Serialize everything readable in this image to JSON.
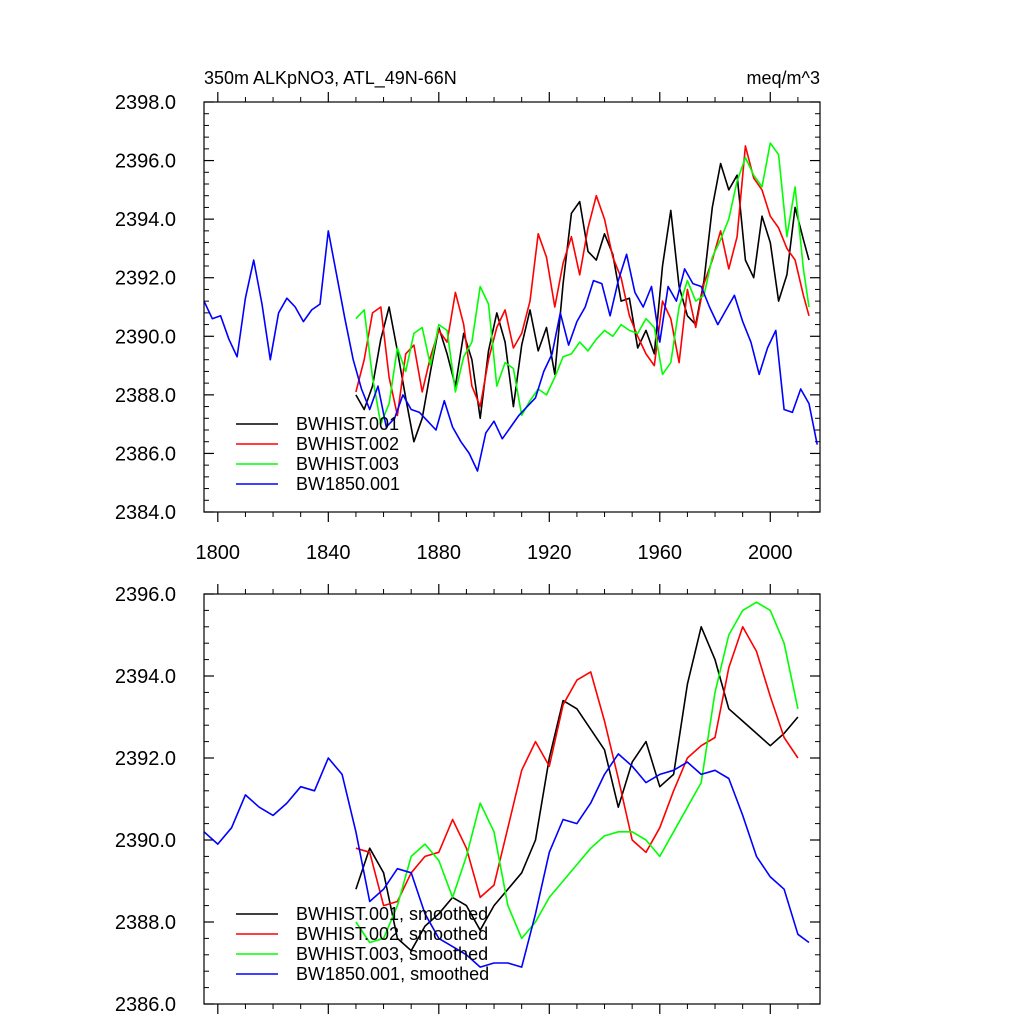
{
  "chart_data": [
    {
      "type": "line",
      "title": "350m ALKpNO3, ATL_49N-66N",
      "units": "meq/m^3",
      "xlim": [
        1795,
        2018
      ],
      "ylim": [
        2384.0,
        2398.0
      ],
      "x_ticks": [
        1800,
        1840,
        1880,
        1920,
        1960,
        2000
      ],
      "x_tick_labels": [
        "1800",
        "1840",
        "1880",
        "1920",
        "1960",
        "2000"
      ],
      "y_ticks": [
        2384.0,
        2386.0,
        2388.0,
        2390.0,
        2392.0,
        2394.0,
        2396.0,
        2398.0
      ],
      "y_tick_labels": [
        "2384.0",
        "2386.0",
        "2388.0",
        "2390.0",
        "2392.0",
        "2394.0",
        "2396.0",
        "2398.0"
      ],
      "legend_position": "bottom-left",
      "series": [
        {
          "name": "BWHIST.001",
          "color": "#000000",
          "x": [
            1850,
            1853,
            1856,
            1859,
            1862,
            1865,
            1868,
            1871,
            1874,
            1877,
            1880,
            1883,
            1886,
            1889,
            1892,
            1895,
            1898,
            1901,
            1904,
            1907,
            1910,
            1913,
            1916,
            1919,
            1922,
            1925,
            1928,
            1931,
            1934,
            1937,
            1940,
            1943,
            1946,
            1949,
            1952,
            1955,
            1958,
            1961,
            1964,
            1967,
            1970,
            1973,
            1976,
            1979,
            1982,
            1985,
            1988,
            1991,
            1994,
            1997,
            2000,
            2003,
            2006,
            2009,
            2012,
            2014
          ],
          "y": [
            2388.0,
            2387.5,
            2388.3,
            2389.9,
            2391.0,
            2389.5,
            2387.9,
            2386.4,
            2387.2,
            2388.8,
            2390.3,
            2389.4,
            2388.3,
            2390.1,
            2389.2,
            2387.2,
            2389.5,
            2390.8,
            2389.8,
            2387.6,
            2389.7,
            2390.9,
            2389.5,
            2390.3,
            2388.7,
            2391.8,
            2394.2,
            2394.6,
            2392.9,
            2392.6,
            2393.5,
            2392.8,
            2391.2,
            2391.3,
            2389.6,
            2390.2,
            2389.4,
            2392.4,
            2394.3,
            2391.7,
            2390.7,
            2390.4,
            2391.9,
            2394.4,
            2395.9,
            2395.0,
            2395.5,
            2392.6,
            2392.0,
            2394.1,
            2393.2,
            2391.2,
            2392.1,
            2394.4,
            2393.3,
            2392.6
          ]
        },
        {
          "name": "BWHIST.002",
          "color": "#ff0000",
          "x": [
            1850,
            1853,
            1856,
            1859,
            1862,
            1865,
            1868,
            1871,
            1874,
            1877,
            1880,
            1883,
            1886,
            1889,
            1892,
            1895,
            1898,
            1901,
            1904,
            1907,
            1910,
            1913,
            1916,
            1919,
            1922,
            1925,
            1928,
            1931,
            1934,
            1937,
            1940,
            1943,
            1946,
            1949,
            1952,
            1955,
            1958,
            1961,
            1964,
            1967,
            1970,
            1973,
            1976,
            1979,
            1982,
            1985,
            1988,
            1991,
            1994,
            1997,
            2000,
            2003,
            2006,
            2009,
            2012,
            2014
          ],
          "y": [
            2388.1,
            2389.2,
            2390.8,
            2391.0,
            2388.6,
            2387.3,
            2389.4,
            2389.7,
            2388.1,
            2389.3,
            2390.2,
            2389.8,
            2391.5,
            2390.4,
            2388.3,
            2387.6,
            2389.2,
            2390.3,
            2390.9,
            2389.6,
            2390.1,
            2391.2,
            2393.5,
            2392.7,
            2391.0,
            2392.5,
            2393.4,
            2392.1,
            2393.7,
            2394.8,
            2394.0,
            2392.7,
            2392.0,
            2390.7,
            2390.0,
            2389.4,
            2389.0,
            2391.2,
            2390.6,
            2389.1,
            2391.6,
            2390.3,
            2391.8,
            2392.6,
            2393.6,
            2392.3,
            2393.4,
            2396.5,
            2395.4,
            2395.0,
            2394.1,
            2393.7,
            2393.0,
            2392.6,
            2391.4,
            2390.7
          ]
        },
        {
          "name": "BWHIST.003",
          "color": "#00ff00",
          "x": [
            1850,
            1853,
            1856,
            1859,
            1862,
            1865,
            1868,
            1871,
            1874,
            1877,
            1880,
            1883,
            1886,
            1889,
            1892,
            1895,
            1898,
            1901,
            1904,
            1907,
            1910,
            1913,
            1916,
            1919,
            1922,
            1925,
            1928,
            1931,
            1934,
            1937,
            1940,
            1943,
            1946,
            1949,
            1952,
            1955,
            1958,
            1961,
            1964,
            1967,
            1970,
            1973,
            1976,
            1979,
            1982,
            1985,
            1988,
            1991,
            1994,
            1997,
            2000,
            2003,
            2006,
            2009,
            2012,
            2014
          ],
          "y": [
            2390.6,
            2390.9,
            2388.6,
            2387.0,
            2387.7,
            2389.6,
            2388.8,
            2390.1,
            2390.3,
            2389.0,
            2390.4,
            2390.2,
            2388.1,
            2389.3,
            2389.8,
            2391.7,
            2391.1,
            2388.3,
            2389.1,
            2388.9,
            2387.3,
            2387.8,
            2388.2,
            2388.0,
            2388.6,
            2389.3,
            2389.4,
            2389.8,
            2389.5,
            2389.9,
            2390.2,
            2390.0,
            2390.4,
            2390.2,
            2390.1,
            2390.6,
            2390.3,
            2388.7,
            2389.1,
            2391.0,
            2391.9,
            2391.2,
            2391.4,
            2392.7,
            2393.3,
            2394.0,
            2395.3,
            2396.1,
            2395.5,
            2395.1,
            2396.6,
            2396.2,
            2393.4,
            2395.1,
            2392.3,
            2391.0
          ]
        },
        {
          "name": "BW1850.001",
          "color": "#0000ff",
          "x": [
            1795,
            1798,
            1801,
            1804,
            1807,
            1810,
            1813,
            1816,
            1819,
            1822,
            1825,
            1828,
            1831,
            1834,
            1837,
            1840,
            1843,
            1846,
            1849,
            1852,
            1855,
            1858,
            1861,
            1864,
            1867,
            1870,
            1873,
            1876,
            1879,
            1882,
            1885,
            1888,
            1891,
            1894,
            1897,
            1900,
            1903,
            1906,
            1909,
            1912,
            1915,
            1918,
            1921,
            1924,
            1927,
            1930,
            1933,
            1936,
            1939,
            1942,
            1945,
            1948,
            1951,
            1954,
            1957,
            1960,
            1963,
            1966,
            1969,
            1972,
            1975,
            1978,
            1981,
            1984,
            1987,
            1990,
            1993,
            1996,
            1999,
            2002,
            2005,
            2008,
            2011,
            2014,
            2017
          ],
          "y": [
            2391.2,
            2390.6,
            2390.7,
            2389.9,
            2389.3,
            2391.3,
            2392.6,
            2391.1,
            2389.2,
            2390.8,
            2391.3,
            2391.0,
            2390.5,
            2390.9,
            2391.1,
            2393.6,
            2392.1,
            2390.6,
            2389.2,
            2388.2,
            2387.5,
            2388.3,
            2386.9,
            2387.2,
            2388.0,
            2387.5,
            2387.4,
            2387.1,
            2386.8,
            2387.8,
            2386.9,
            2386.4,
            2386.0,
            2385.4,
            2386.7,
            2387.1,
            2386.5,
            2386.9,
            2387.3,
            2387.6,
            2387.9,
            2388.8,
            2389.4,
            2390.8,
            2389.7,
            2390.5,
            2391.0,
            2391.9,
            2391.8,
            2390.7,
            2391.9,
            2392.8,
            2391.5,
            2391.0,
            2391.7,
            2389.8,
            2391.7,
            2391.2,
            2392.3,
            2391.8,
            2391.7,
            2391.0,
            2390.4,
            2390.9,
            2391.4,
            2390.5,
            2389.8,
            2388.7,
            2389.6,
            2390.2,
            2387.5,
            2387.4,
            2388.2,
            2387.7,
            2386.3
          ]
        }
      ]
    },
    {
      "type": "line",
      "title": "",
      "units": "",
      "xlim": [
        1795,
        2018
      ],
      "ylim": [
        2386.0,
        2396.0
      ],
      "x_ticks": [
        1800,
        1840,
        1880,
        1920,
        1960,
        2000
      ],
      "x_tick_labels": [],
      "y_ticks": [
        2386.0,
        2388.0,
        2390.0,
        2392.0,
        2394.0,
        2396.0
      ],
      "y_tick_labels": [
        "2386.0",
        "2388.0",
        "2390.0",
        "2392.0",
        "2394.0",
        "2396.0"
      ],
      "legend_position": "bottom-left",
      "series": [
        {
          "name": "BWHIST.001, smoothed",
          "color": "#000000",
          "x": [
            1850,
            1855,
            1860,
            1865,
            1870,
            1875,
            1880,
            1885,
            1890,
            1895,
            1900,
            1905,
            1910,
            1915,
            1920,
            1925,
            1930,
            1935,
            1940,
            1945,
            1950,
            1955,
            1960,
            1965,
            1970,
            1975,
            1980,
            1985,
            1990,
            1995,
            2000,
            2005,
            2010
          ],
          "y": [
            2388.8,
            2389.8,
            2389.2,
            2387.6,
            2387.3,
            2387.9,
            2388.2,
            2388.6,
            2388.4,
            2387.8,
            2388.4,
            2388.8,
            2389.2,
            2390.0,
            2392.0,
            2393.4,
            2393.2,
            2392.7,
            2392.2,
            2390.8,
            2391.9,
            2392.4,
            2391.3,
            2391.6,
            2393.8,
            2395.2,
            2394.4,
            2393.2,
            2392.9,
            2392.6,
            2392.3,
            2392.6,
            2393.0
          ]
        },
        {
          "name": "BWHIST.002, smoothed",
          "color": "#ff0000",
          "x": [
            1850,
            1855,
            1860,
            1865,
            1870,
            1875,
            1880,
            1885,
            1890,
            1895,
            1900,
            1905,
            1910,
            1915,
            1920,
            1925,
            1930,
            1935,
            1940,
            1945,
            1950,
            1955,
            1960,
            1965,
            1970,
            1975,
            1980,
            1985,
            1990,
            1995,
            2000,
            2005,
            2010
          ],
          "y": [
            2389.8,
            2389.7,
            2388.4,
            2388.5,
            2389.2,
            2389.6,
            2389.7,
            2390.5,
            2389.8,
            2388.6,
            2388.9,
            2390.3,
            2391.7,
            2392.4,
            2391.8,
            2393.3,
            2393.9,
            2394.1,
            2392.9,
            2391.5,
            2390.0,
            2389.7,
            2390.3,
            2391.2,
            2392.0,
            2392.3,
            2392.5,
            2394.2,
            2395.2,
            2394.6,
            2393.5,
            2392.5,
            2392.0
          ]
        },
        {
          "name": "BWHIST.003, smoothed",
          "color": "#00ff00",
          "x": [
            1850,
            1855,
            1860,
            1865,
            1870,
            1875,
            1880,
            1885,
            1890,
            1895,
            1900,
            1905,
            1910,
            1915,
            1920,
            1925,
            1930,
            1935,
            1940,
            1945,
            1950,
            1955,
            1960,
            1965,
            1970,
            1975,
            1980,
            1985,
            1990,
            1995,
            2000,
            2005,
            2010
          ],
          "y": [
            2388.0,
            2387.5,
            2387.6,
            2388.4,
            2389.6,
            2389.9,
            2389.5,
            2388.6,
            2389.6,
            2390.9,
            2390.2,
            2388.4,
            2387.6,
            2388.0,
            2388.6,
            2389.0,
            2389.4,
            2389.8,
            2390.1,
            2390.2,
            2390.2,
            2390.0,
            2389.6,
            2390.2,
            2390.8,
            2391.4,
            2393.6,
            2395.0,
            2395.6,
            2395.8,
            2395.6,
            2394.8,
            2393.2
          ]
        },
        {
          "name": "BW1850.001, smoothed",
          "color": "#0000ff",
          "x": [
            1795,
            1800,
            1805,
            1810,
            1815,
            1820,
            1825,
            1830,
            1835,
            1840,
            1845,
            1850,
            1855,
            1860,
            1865,
            1870,
            1875,
            1880,
            1885,
            1890,
            1895,
            1900,
            1905,
            1910,
            1915,
            1920,
            1925,
            1930,
            1935,
            1940,
            1945,
            1950,
            1955,
            1960,
            1965,
            1970,
            1975,
            1980,
            1985,
            1990,
            1995,
            2000,
            2005,
            2010,
            2014
          ],
          "y": [
            2390.2,
            2389.9,
            2390.3,
            2391.1,
            2390.8,
            2390.6,
            2390.9,
            2391.3,
            2391.2,
            2392.0,
            2391.6,
            2390.2,
            2388.5,
            2388.8,
            2389.3,
            2389.2,
            2388.2,
            2387.6,
            2387.4,
            2387.2,
            2386.9,
            2387.0,
            2387.0,
            2386.9,
            2388.2,
            2389.7,
            2390.5,
            2390.4,
            2390.9,
            2391.6,
            2392.1,
            2391.8,
            2391.4,
            2391.6,
            2391.7,
            2391.9,
            2391.6,
            2391.7,
            2391.5,
            2390.6,
            2389.6,
            2389.1,
            2388.8,
            2387.7,
            2387.5
          ]
        }
      ]
    }
  ]
}
